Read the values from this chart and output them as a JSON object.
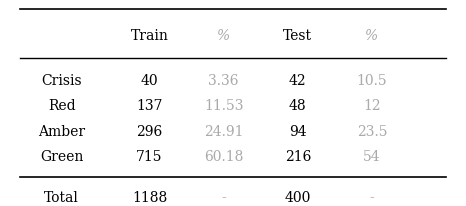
{
  "columns": [
    "",
    "Train",
    "%",
    "Test",
    "%"
  ],
  "rows": [
    [
      "Crisis",
      "40",
      "3.36",
      "42",
      "10.5"
    ],
    [
      "Red",
      "137",
      "11.53",
      "48",
      "12"
    ],
    [
      "Amber",
      "296",
      "24.91",
      "94",
      "23.5"
    ],
    [
      "Green",
      "715",
      "60.18",
      "216",
      "54"
    ],
    [
      "Total",
      "1188",
      "-",
      "400",
      "-"
    ]
  ],
  "pct_col_indices": [
    2,
    4
  ],
  "background_color": "#ffffff",
  "figsize": [
    4.66,
    2.06
  ],
  "dpi": 100
}
